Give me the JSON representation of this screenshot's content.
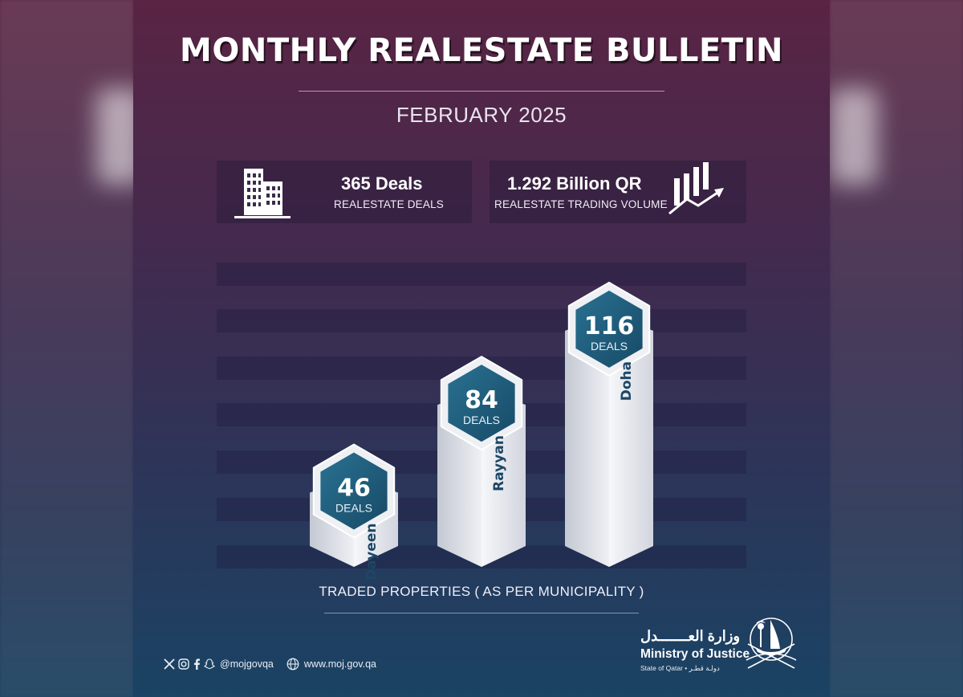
{
  "header": {
    "title": "MONTHLY REALESTATE BULLETIN",
    "period": "FEBRUARY 2025"
  },
  "stats": {
    "deals": {
      "value": "365 Deals",
      "label": "REALESTATE DEALS",
      "icon": "building-icon"
    },
    "volume": {
      "value": "1.292 Billion QR",
      "label": "REALESTATE TRADING VOLUME",
      "icon": "bar-growth-arrow-icon"
    }
  },
  "chart_data": {
    "type": "bar",
    "categories": [
      "Dayeen",
      "Rayyan",
      "Doha"
    ],
    "values": [
      46,
      84,
      116
    ],
    "value_unit": "DEALS",
    "xlabel": "TRADED PROPERTIES ( AS PER MUNICIPALITY )",
    "colors": {
      "badge": "#1f5f7e",
      "column": "#e6e8ee",
      "label": "#1d4766"
    }
  },
  "footer": {
    "social_icons": [
      "x-icon",
      "instagram-icon",
      "facebook-icon",
      "snapchat-icon"
    ],
    "handle": "@mojgovqa",
    "website": "www.moj.gov.qa",
    "logo_arabic": "وزارة العـــــــدل",
    "logo_english": "Ministry of Justice",
    "logo_sub": "State of Qatar • دولـة قطـر"
  }
}
